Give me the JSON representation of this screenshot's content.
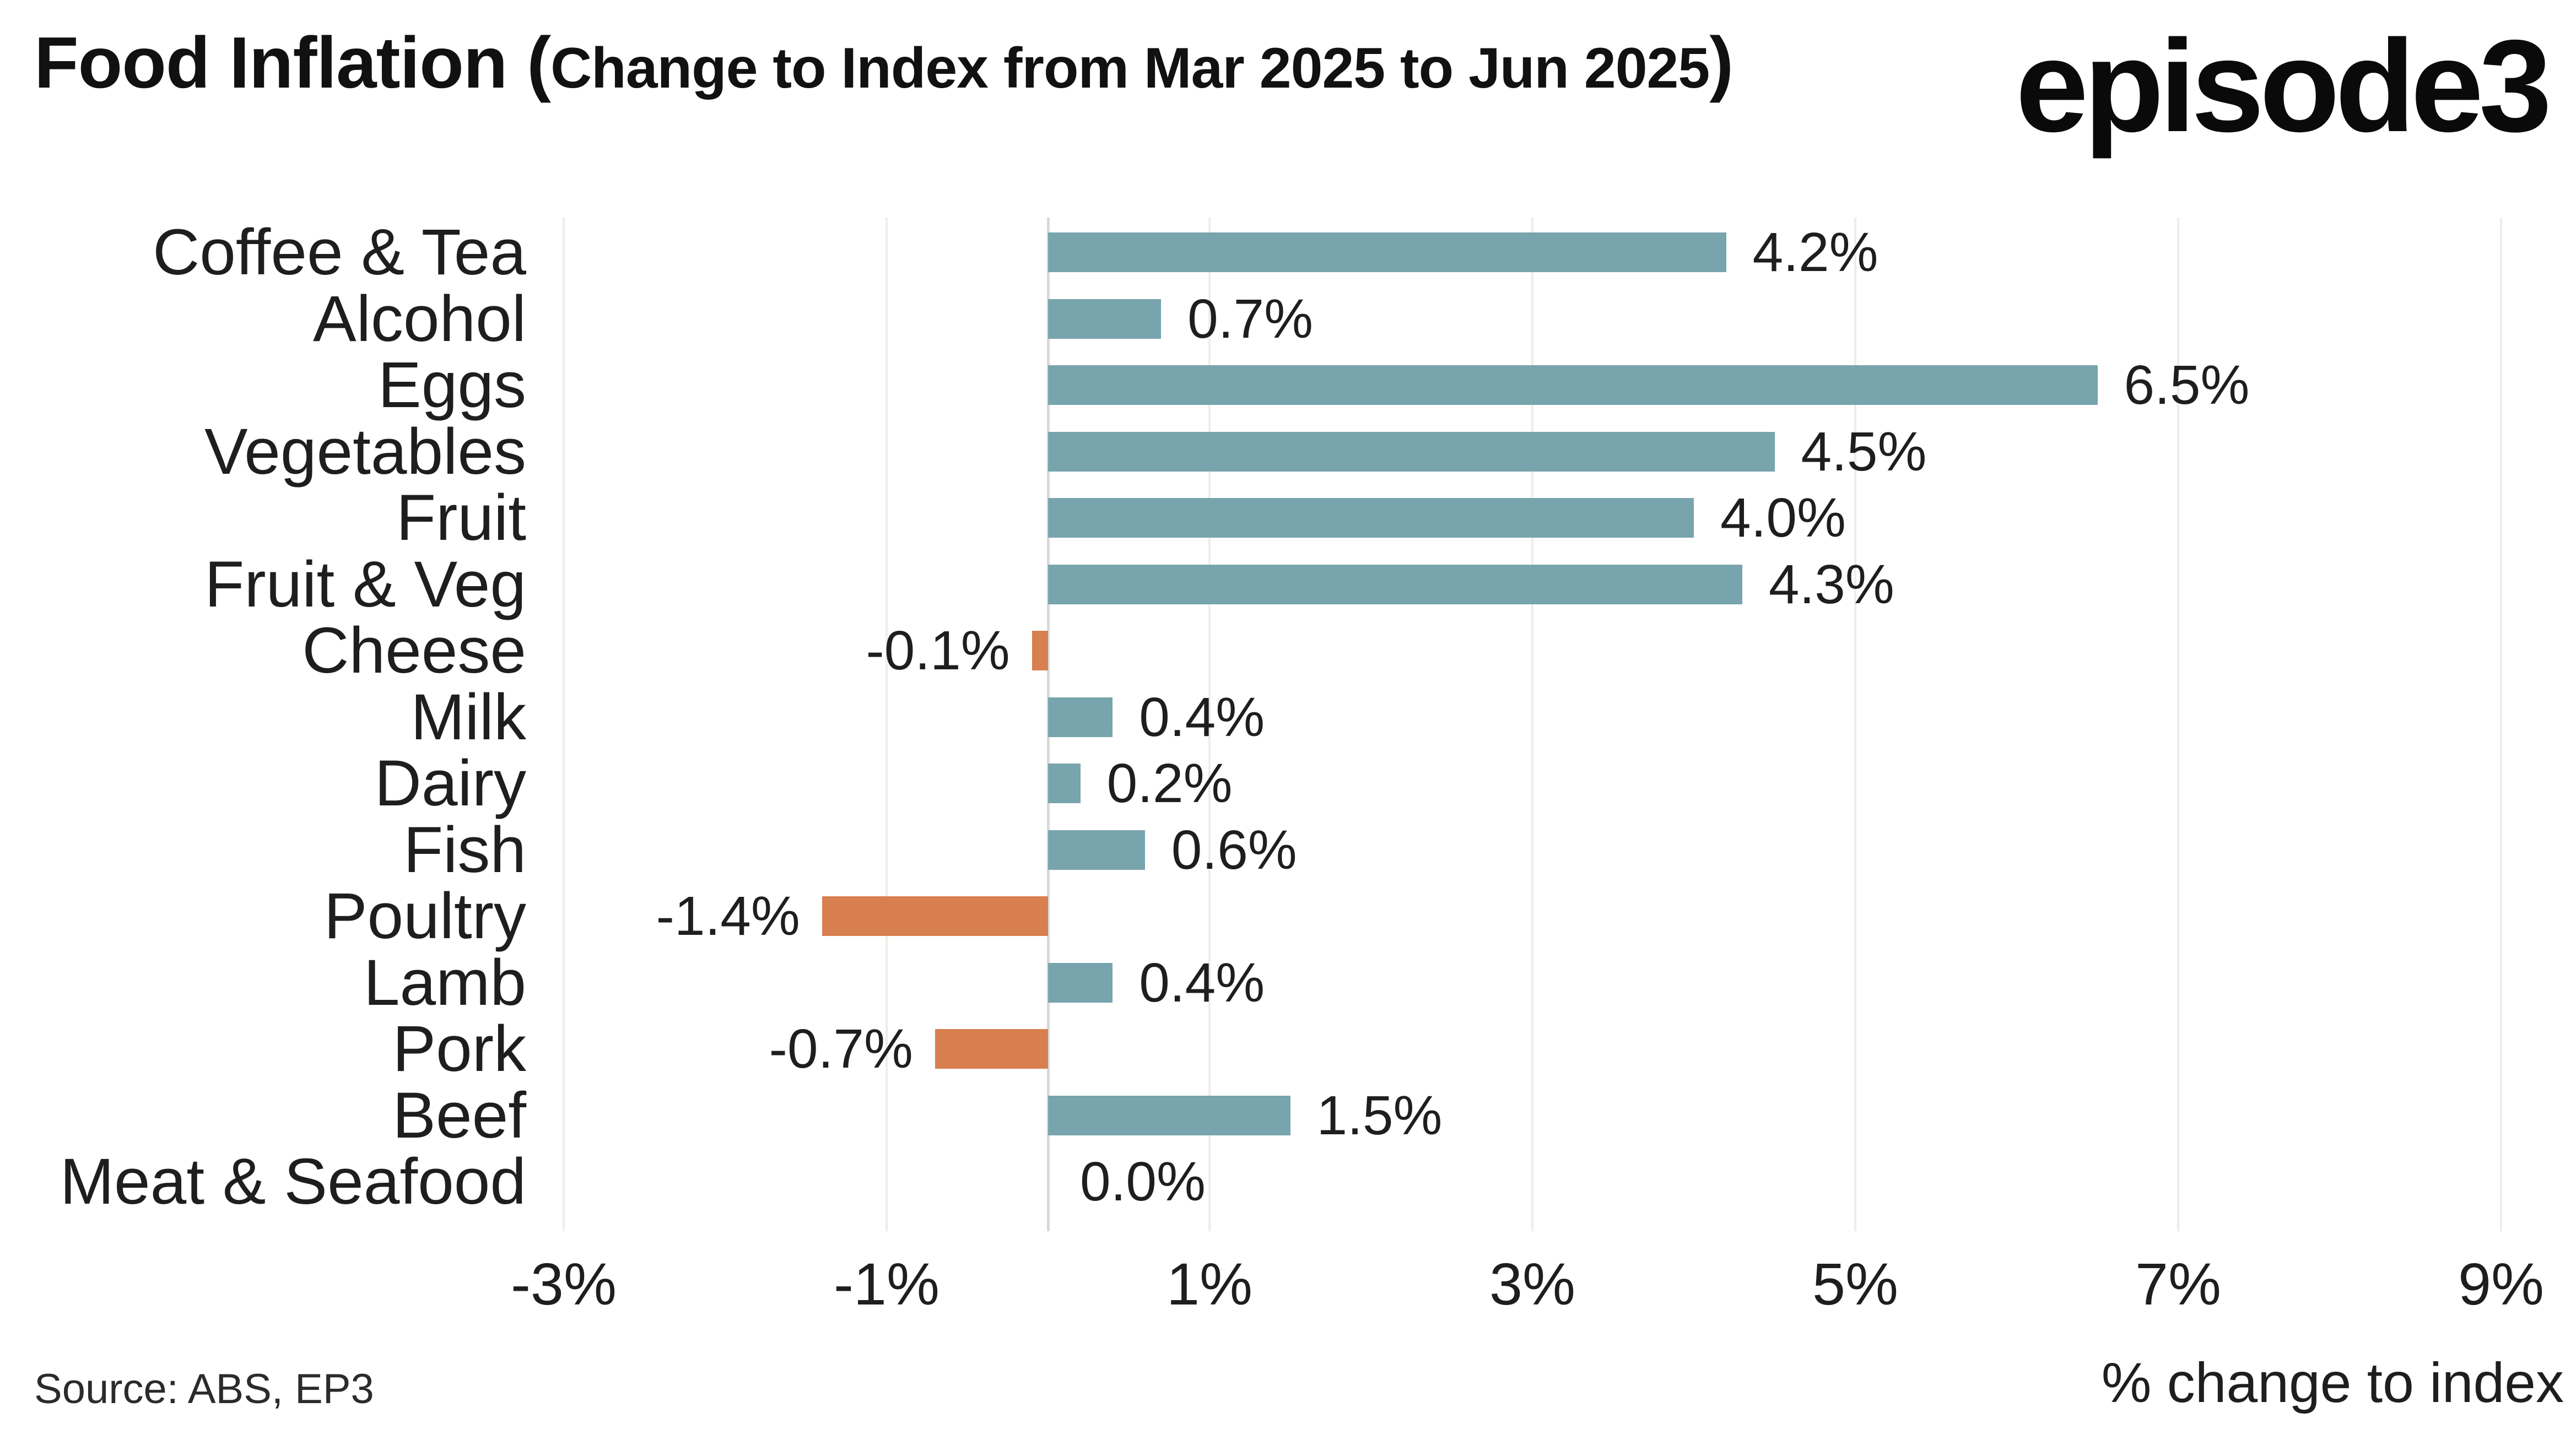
{
  "header": {
    "title_main": "Food Inflation (",
    "title_sub": "Change to Index from Mar 2025 to Jun 2025",
    "title_close": ")",
    "logo": "episode3"
  },
  "footer": {
    "source": "Source: ABS, EP3",
    "xlabel": "% change to index"
  },
  "colors": {
    "positive_bar": "#77A4AD",
    "negative_bar": "#D87F50",
    "gridline": "#EFEDE5",
    "zeroline": "#D9D9D9",
    "text": "#1E1E1E"
  },
  "chart_data": {
    "type": "bar",
    "orientation": "horizontal",
    "title": "Food Inflation (Change to Index from Mar 2025 to Jun 2025)",
    "xlabel": "% change to index",
    "source": "Source: ABS, EP3",
    "grid": "vertical-at-labeled-ticks",
    "legend": "none",
    "xlim": [
      -3.5,
      9.5
    ],
    "xticks": [
      -3,
      -1,
      1,
      3,
      5,
      7,
      9
    ],
    "xtick_labels": [
      "-3%",
      "-1%",
      "1%",
      "3%",
      "5%",
      "7%",
      "9%"
    ],
    "categories": [
      "Coffee & Tea",
      "Alcohol",
      "Eggs",
      "Vegetables",
      "Fruit",
      "Fruit & Veg",
      "Cheese",
      "Milk",
      "Dairy",
      "Fish",
      "Poultry",
      "Lamb",
      "Pork",
      "Beef",
      "Meat & Seafood"
    ],
    "values": [
      4.2,
      0.7,
      6.5,
      4.5,
      4.0,
      4.3,
      -0.1,
      0.4,
      0.2,
      0.6,
      -1.4,
      0.4,
      -0.7,
      1.5,
      0.0
    ],
    "value_labels": [
      "4.2%",
      "0.7%",
      "6.5%",
      "4.5%",
      "4.0%",
      "4.3%",
      "-0.1%",
      "0.4%",
      "0.2%",
      "0.6%",
      "-1.4%",
      "0.4%",
      "-0.7%",
      "1.5%",
      "0.0%"
    ]
  }
}
